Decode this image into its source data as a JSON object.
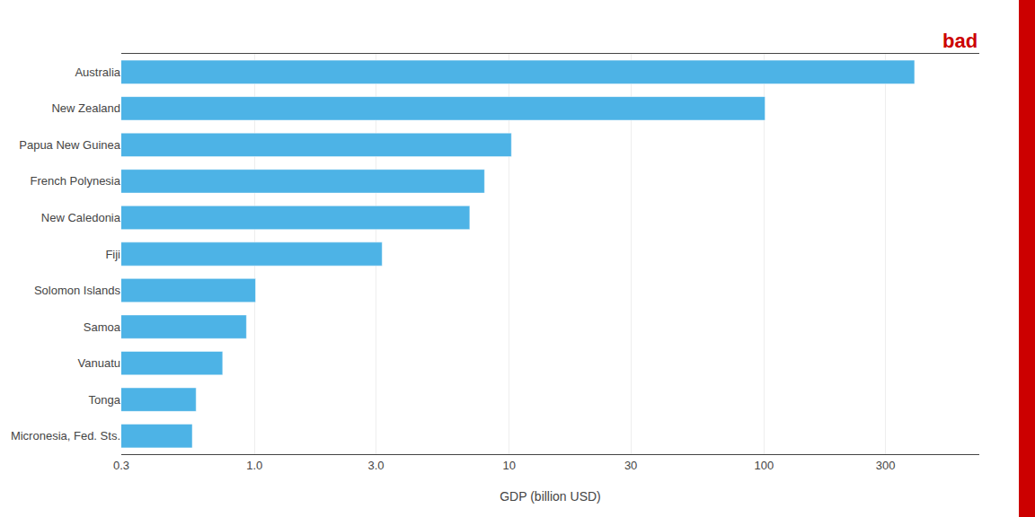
{
  "chart_data": {
    "type": "bar",
    "orientation": "horizontal",
    "categories": [
      "Micronesia, Fed. Sts.",
      "Tonga",
      "Vanuatu",
      "Samoa",
      "Solomon Islands",
      "Fiji",
      "New Caledonia",
      "French Polynesia",
      "Papua New Guinea",
      "New Zealand",
      "Australia"
    ],
    "values": [
      0.57,
      0.59,
      0.75,
      0.93,
      1.01,
      3.17,
      7.0,
      8.0,
      10.2,
      101.0,
      390.0
    ],
    "color": "#4db3e6",
    "xlabel": "GDP (billion USD)",
    "log": "x",
    "xlim": [
      0.3,
      700.0
    ],
    "xticks": [
      0.3,
      {
        "value": 1.0,
        "label": "1.0"
      },
      {
        "value": 3.0,
        "label": "3.0"
      },
      10,
      30,
      100,
      300
    ],
    "grid": "x",
    "annotations": [
      {
        "text": "bad",
        "color": "#cc0000"
      }
    ]
  }
}
